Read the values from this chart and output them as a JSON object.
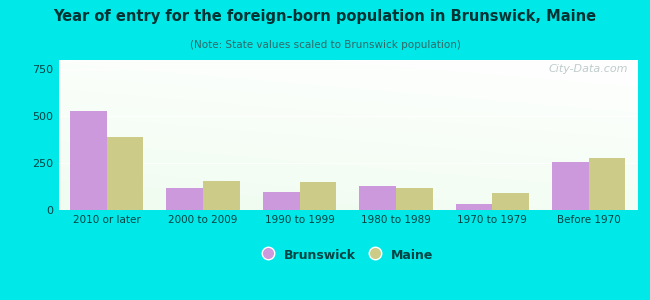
{
  "title": "Year of entry for the foreign-born population in Brunswick, Maine",
  "subtitle": "(Note: State values scaled to Brunswick population)",
  "categories": [
    "2010 or later",
    "2000 to 2009",
    "1990 to 1999",
    "1980 to 1989",
    "1970 to 1979",
    "Before 1970"
  ],
  "brunswick_values": [
    530,
    120,
    95,
    130,
    30,
    255
  ],
  "maine_values": [
    390,
    155,
    150,
    115,
    90,
    275
  ],
  "brunswick_color": "#cc99dd",
  "maine_color": "#cccc88",
  "background_color": "#00e8e8",
  "ylim": [
    0,
    800
  ],
  "yticks": [
    0,
    250,
    500,
    750
  ],
  "bar_width": 0.38,
  "legend_brunswick": "Brunswick",
  "legend_maine": "Maine",
  "watermark": "City-Data.com",
  "title_color": "#003333",
  "subtitle_color": "#336666",
  "tick_label_color": "#004444"
}
